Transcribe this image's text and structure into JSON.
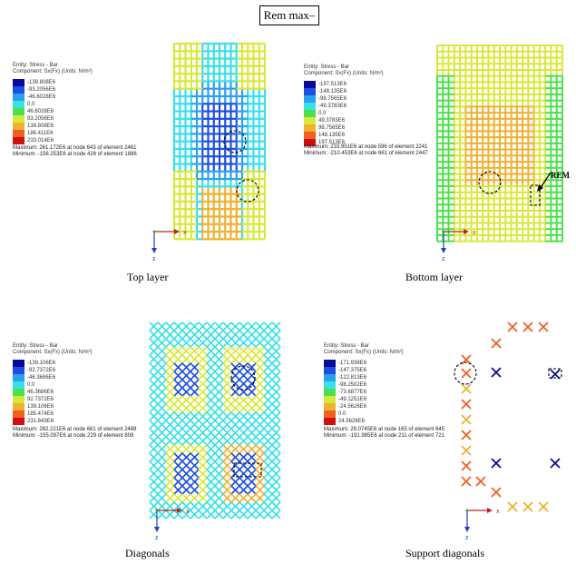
{
  "figure_title": "Rem max–",
  "rem_label": "REM",
  "panels": [
    {
      "caption": "Top layer",
      "entity": "Entity: Stress - Bar",
      "component": "Component: Sx(Fx) (Units: N/m²)",
      "legend": [
        "-139.808E6",
        "-93.2056E6",
        "-46.6028E6",
        "0.0",
        "46.6028E6",
        "93.2056E6",
        "139.808E6",
        "186.411E6",
        "233.014E6"
      ],
      "maximum": "Maximum: 261.172E6 at node 643 of element 2461",
      "minimum": "Minimum: -156.253E6 at node 426 of element 1886"
    },
    {
      "caption": "Bottom layer",
      "entity": "Entity: Stress - Bar",
      "component": "Component: Sx(Fx) (Units: N/m²)",
      "legend": [
        "-197.513E6",
        "-148.135E6",
        "-98.7565E6",
        "-49.3783E6",
        "0.0",
        "49.3783E6",
        "98.7565E6",
        "148.135E6",
        "197.513E6"
      ],
      "maximum": "Maximum: 233.951E6 at node 596 of element 2241",
      "minimum": "Minimum: -210.453E6 at node 661 of element 2447"
    },
    {
      "caption": "Diagonals",
      "entity": "Entity: Stress - Bar",
      "component": "Component: Sx(Fx) (Units: N/m²)",
      "legend": [
        "-139.106E6",
        "-92.7372E6",
        "-46.3686E6",
        "0.0",
        "46.3686E6",
        "92.7372E6",
        "139.106E6",
        "185.474E6",
        "231.843E6"
      ],
      "maximum": "Maximum: 282.221E6 at node 661 of element 2488",
      "minimum": "Minimum: -155.097E6 at node 229 of element 808"
    },
    {
      "caption": "Support diagonals",
      "entity": "Entity: Stress - Bar",
      "component": "Component: Sx(Fx) (Units: N/m²)",
      "legend": [
        "-171.938E6",
        "-147.375E6",
        "-122.813E6",
        "-98.2502E6",
        "-73.6877E6",
        "-49.1251E6",
        "-24.5626E6",
        "0.0",
        "24.5626E6"
      ],
      "maximum": "Maximum: 29.0745E6 at node 165 of element 645",
      "minimum": "Minimum: -191.985E6 at node 211 of element 721"
    }
  ],
  "legend_colors": [
    "#0a0a9a",
    "#1d4fe0",
    "#2aa0f0",
    "#38e0e8",
    "#4ce04c",
    "#d8e83a",
    "#f0b030",
    "#f06020",
    "#d01010"
  ],
  "axis": {
    "x": "x",
    "z": "z"
  }
}
